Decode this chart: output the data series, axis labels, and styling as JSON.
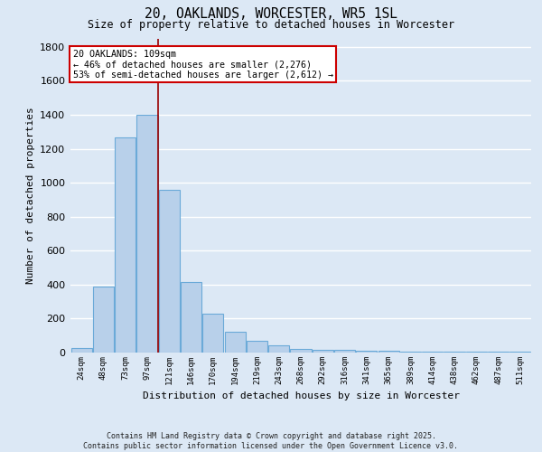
{
  "title": "20, OAKLANDS, WORCESTER, WR5 1SL",
  "subtitle": "Size of property relative to detached houses in Worcester",
  "xlabel": "Distribution of detached houses by size in Worcester",
  "ylabel": "Number of detached properties",
  "categories": [
    "24sqm",
    "48sqm",
    "73sqm",
    "97sqm",
    "121sqm",
    "146sqm",
    "170sqm",
    "194sqm",
    "219sqm",
    "243sqm",
    "268sqm",
    "292sqm",
    "316sqm",
    "341sqm",
    "365sqm",
    "389sqm",
    "414sqm",
    "438sqm",
    "462sqm",
    "487sqm",
    "511sqm"
  ],
  "values": [
    25,
    390,
    1265,
    1400,
    960,
    415,
    230,
    125,
    70,
    45,
    20,
    15,
    15,
    10,
    10,
    5,
    5,
    5,
    5,
    5,
    5
  ],
  "bar_color": "#b8d0ea",
  "bar_edge_color": "#6baad8",
  "fig_facecolor": "#dce8f5",
  "ax_facecolor": "#dce8f5",
  "grid_color": "#ffffff",
  "red_line_x": 3.5,
  "annotation_text": "20 OAKLANDS: 109sqm\n← 46% of detached houses are smaller (2,276)\n53% of semi-detached houses are larger (2,612) →",
  "annotation_box_color": "#ffffff",
  "annotation_box_edge_color": "#cc0000",
  "ylim": [
    0,
    1850
  ],
  "yticks": [
    0,
    200,
    400,
    600,
    800,
    1000,
    1200,
    1400,
    1600,
    1800
  ],
  "footer_line1": "Contains HM Land Registry data © Crown copyright and database right 2025.",
  "footer_line2": "Contains public sector information licensed under the Open Government Licence v3.0."
}
